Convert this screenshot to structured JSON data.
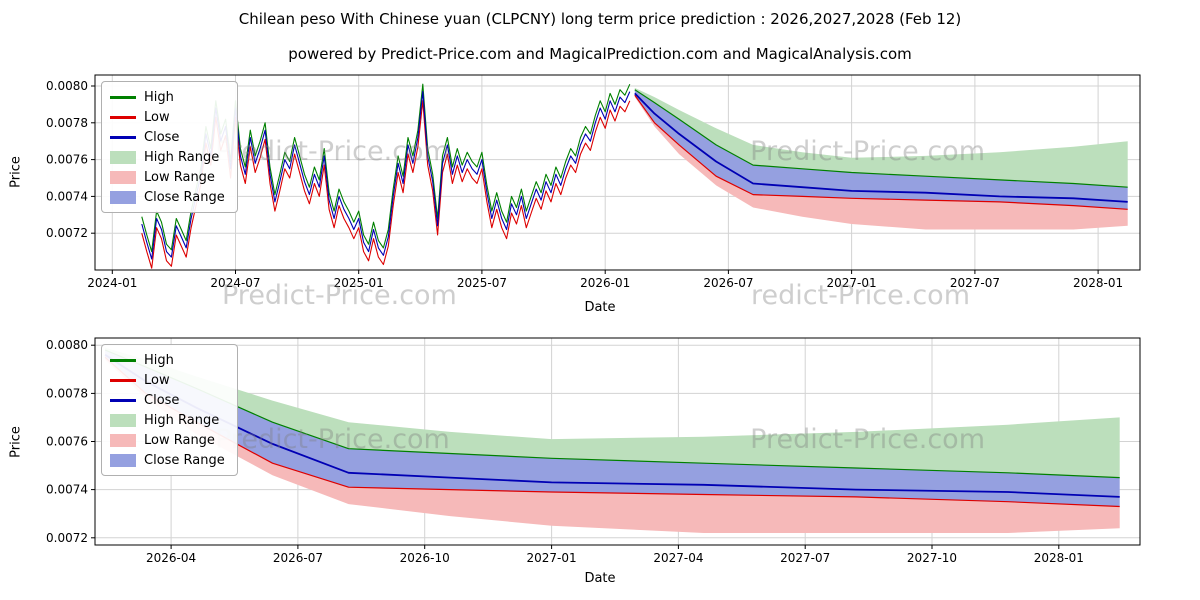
{
  "chart_data": [
    {
      "name": "price-history-and-forecast",
      "type": "line",
      "title": "Chilean peso With Chinese yuan (CLPCNY) long term price prediction : 2026,2027,2028 (Feb 12)",
      "subtitle": "powered by Predict-Price.com and MagicalPrediction.com and MagicalAnalysis.com",
      "xlabel": "Date",
      "ylabel": "Price",
      "xlim": [
        2023.93,
        2028.17
      ],
      "ylim": [
        0.007,
        0.00806
      ],
      "grid": true,
      "legend_position": "upper left",
      "x_ticks": [
        {
          "t": 2024.0,
          "label": "2024-01"
        },
        {
          "t": 2024.5,
          "label": "2024-07"
        },
        {
          "t": 2025.0,
          "label": "2025-01"
        },
        {
          "t": 2025.5,
          "label": "2025-07"
        },
        {
          "t": 2026.0,
          "label": "2026-01"
        },
        {
          "t": 2026.5,
          "label": "2026-07"
        },
        {
          "t": 2027.0,
          "label": "2027-01"
        },
        {
          "t": 2027.5,
          "label": "2027-07"
        },
        {
          "t": 2028.0,
          "label": "2028-01"
        }
      ],
      "y_ticks": [
        {
          "v": 0.0072,
          "label": "0.0072"
        },
        {
          "v": 0.0074,
          "label": "0.0074"
        },
        {
          "v": 0.0076,
          "label": "0.0076"
        },
        {
          "v": 0.0078,
          "label": "0.0078"
        },
        {
          "v": 0.008,
          "label": "0.0080"
        }
      ],
      "history": {
        "t_start": 2024.12,
        "t_step": 0.02,
        "close": [
          0.00725,
          0.00715,
          0.00706,
          0.00728,
          0.00722,
          0.0071,
          0.00707,
          0.00724,
          0.00718,
          0.00712,
          0.00728,
          0.0074,
          0.00752,
          0.00774,
          0.00762,
          0.00788,
          0.0077,
          0.00778,
          0.00755,
          0.00788,
          0.00762,
          0.00752,
          0.00772,
          0.00758,
          0.00766,
          0.00776,
          0.00752,
          0.00737,
          0.00748,
          0.0076,
          0.00755,
          0.00768,
          0.00758,
          0.00748,
          0.00741,
          0.00752,
          0.00745,
          0.00762,
          0.00738,
          0.00728,
          0.0074,
          0.00733,
          0.00728,
          0.00722,
          0.00728,
          0.00715,
          0.0071,
          0.00722,
          0.00712,
          0.00708,
          0.00718,
          0.0074,
          0.00758,
          0.00747,
          0.00768,
          0.00758,
          0.00772,
          0.00797,
          0.00762,
          0.00748,
          0.00724,
          0.00758,
          0.00768,
          0.00752,
          0.00762,
          0.00753,
          0.0076,
          0.00755,
          0.00752,
          0.0076,
          0.00742,
          0.00728,
          0.00738,
          0.00728,
          0.00722,
          0.00736,
          0.0073,
          0.0074,
          0.00728,
          0.00736,
          0.00744,
          0.00738,
          0.00748,
          0.00742,
          0.00752,
          0.00746,
          0.00755,
          0.00762,
          0.00758,
          0.00768,
          0.00774,
          0.0077,
          0.0078,
          0.00788,
          0.00782,
          0.00792,
          0.00786,
          0.00794,
          0.00791,
          0.00797
        ],
        "high": [
          0.00729,
          0.00719,
          0.0071,
          0.00732,
          0.00726,
          0.00714,
          0.00711,
          0.00728,
          0.00722,
          0.00716,
          0.00732,
          0.00744,
          0.00756,
          0.00778,
          0.00766,
          0.00792,
          0.00774,
          0.00782,
          0.00759,
          0.00792,
          0.00766,
          0.00756,
          0.00776,
          0.00762,
          0.0077,
          0.0078,
          0.00756,
          0.00741,
          0.00752,
          0.00764,
          0.00759,
          0.00772,
          0.00762,
          0.00752,
          0.00745,
          0.00756,
          0.00749,
          0.00766,
          0.00742,
          0.00732,
          0.00744,
          0.00737,
          0.00732,
          0.00726,
          0.00732,
          0.00719,
          0.00714,
          0.00726,
          0.00716,
          0.00712,
          0.00722,
          0.00744,
          0.00762,
          0.00751,
          0.00772,
          0.00762,
          0.00776,
          0.00801,
          0.00766,
          0.00752,
          0.00728,
          0.00762,
          0.00772,
          0.00756,
          0.00766,
          0.00757,
          0.00764,
          0.00759,
          0.00756,
          0.00764,
          0.00746,
          0.00732,
          0.00742,
          0.00732,
          0.00726,
          0.0074,
          0.00734,
          0.00744,
          0.00732,
          0.0074,
          0.00748,
          0.00742,
          0.00752,
          0.00746,
          0.00756,
          0.0075,
          0.00759,
          0.00766,
          0.00762,
          0.00772,
          0.00778,
          0.00774,
          0.00784,
          0.00792,
          0.00786,
          0.00796,
          0.0079,
          0.00798,
          0.00795,
          0.00801
        ],
        "low": [
          0.0072,
          0.0071,
          0.00701,
          0.00723,
          0.00717,
          0.00705,
          0.00702,
          0.00719,
          0.00713,
          0.00707,
          0.00723,
          0.00735,
          0.00747,
          0.00769,
          0.00757,
          0.00783,
          0.00765,
          0.00773,
          0.0075,
          0.00783,
          0.00757,
          0.00747,
          0.00767,
          0.00753,
          0.00761,
          0.00771,
          0.00747,
          0.00732,
          0.00743,
          0.00755,
          0.0075,
          0.00763,
          0.00753,
          0.00743,
          0.00736,
          0.00747,
          0.0074,
          0.00757,
          0.00733,
          0.00723,
          0.00735,
          0.00728,
          0.00723,
          0.00717,
          0.00723,
          0.0071,
          0.00705,
          0.00717,
          0.00707,
          0.00703,
          0.00713,
          0.00735,
          0.00753,
          0.00742,
          0.00763,
          0.00753,
          0.00767,
          0.00792,
          0.00757,
          0.00743,
          0.00719,
          0.00753,
          0.00763,
          0.00747,
          0.00757,
          0.00748,
          0.00755,
          0.0075,
          0.00747,
          0.00755,
          0.00737,
          0.00723,
          0.00733,
          0.00723,
          0.00717,
          0.00731,
          0.00725,
          0.00735,
          0.00723,
          0.00731,
          0.00739,
          0.00733,
          0.00743,
          0.00737,
          0.00747,
          0.00741,
          0.0075,
          0.00757,
          0.00753,
          0.00763,
          0.00769,
          0.00765,
          0.00775,
          0.00783,
          0.00777,
          0.00787,
          0.00781,
          0.00789,
          0.00786,
          0.00792
        ]
      },
      "forecast": {
        "t": [
          2026.12,
          2026.2,
          2026.3,
          2026.45,
          2026.6,
          2026.8,
          2027.0,
          2027.3,
          2027.6,
          2027.9,
          2028.12
        ],
        "close": [
          0.00796,
          0.00785,
          0.00774,
          0.00759,
          0.00747,
          0.00745,
          0.00743,
          0.00742,
          0.0074,
          0.00739,
          0.00737
        ],
        "close_upper": [
          0.00798,
          0.00791,
          0.00782,
          0.00768,
          0.00757,
          0.00755,
          0.00753,
          0.00751,
          0.00749,
          0.00747,
          0.00745
        ],
        "close_lower": [
          0.00795,
          0.0078,
          0.00768,
          0.00751,
          0.00741,
          0.0074,
          0.00739,
          0.00738,
          0.00737,
          0.00735,
          0.00733
        ],
        "high_upper": [
          0.00799,
          0.00794,
          0.00787,
          0.00777,
          0.00768,
          0.00764,
          0.00761,
          0.00762,
          0.00764,
          0.00767,
          0.0077
        ],
        "low_lower": [
          0.00794,
          0.00778,
          0.00763,
          0.00746,
          0.00734,
          0.00729,
          0.00725,
          0.00722,
          0.00722,
          0.00722,
          0.00724
        ]
      }
    },
    {
      "name": "forecast-detail",
      "type": "line",
      "title": "",
      "xlabel": "Date",
      "ylabel": "Price",
      "xlim": [
        2026.1,
        2028.16
      ],
      "ylim": [
        0.00717,
        0.00803
      ],
      "grid": true,
      "legend_position": "upper left",
      "x_ticks": [
        {
          "t": 2026.25,
          "label": "2026-04"
        },
        {
          "t": 2026.5,
          "label": "2026-07"
        },
        {
          "t": 2026.75,
          "label": "2026-10"
        },
        {
          "t": 2027.0,
          "label": "2027-01"
        },
        {
          "t": 2027.25,
          "label": "2027-04"
        },
        {
          "t": 2027.5,
          "label": "2027-07"
        },
        {
          "t": 2027.75,
          "label": "2027-10"
        },
        {
          "t": 2028.0,
          "label": "2028-01"
        }
      ],
      "y_ticks": [
        {
          "v": 0.0072,
          "label": "0.0072"
        },
        {
          "v": 0.0074,
          "label": "0.0074"
        },
        {
          "v": 0.0076,
          "label": "0.0076"
        },
        {
          "v": 0.0078,
          "label": "0.0078"
        },
        {
          "v": 0.008,
          "label": "0.0080"
        }
      ],
      "forecast": {
        "t": [
          2026.12,
          2026.2,
          2026.3,
          2026.45,
          2026.6,
          2026.8,
          2027.0,
          2027.3,
          2027.6,
          2027.9,
          2028.12
        ],
        "close": [
          0.00796,
          0.00785,
          0.00774,
          0.00759,
          0.00747,
          0.00745,
          0.00743,
          0.00742,
          0.0074,
          0.00739,
          0.00737
        ],
        "close_upper": [
          0.00798,
          0.00791,
          0.00782,
          0.00768,
          0.00757,
          0.00755,
          0.00753,
          0.00751,
          0.00749,
          0.00747,
          0.00745
        ],
        "close_lower": [
          0.00795,
          0.0078,
          0.00768,
          0.00751,
          0.00741,
          0.0074,
          0.00739,
          0.00738,
          0.00737,
          0.00735,
          0.00733
        ],
        "high_upper": [
          0.00799,
          0.00794,
          0.00787,
          0.00777,
          0.00768,
          0.00764,
          0.00761,
          0.00762,
          0.00764,
          0.00767,
          0.0077
        ],
        "low_lower": [
          0.00794,
          0.00778,
          0.00763,
          0.00746,
          0.00734,
          0.00729,
          0.00725,
          0.00722,
          0.00722,
          0.00722,
          0.00724
        ]
      }
    }
  ],
  "legend": [
    {
      "label": "High",
      "type": "line",
      "color_key": "high_line"
    },
    {
      "label": "Low",
      "type": "line",
      "color_key": "low_line"
    },
    {
      "label": "Close",
      "type": "line",
      "color_key": "close_line"
    },
    {
      "label": "High Range",
      "type": "patch",
      "color_key": "high_range_fill"
    },
    {
      "label": "Low Range",
      "type": "patch",
      "color_key": "low_range_fill"
    },
    {
      "label": "Close Range",
      "type": "patch",
      "color_key": "close_range_fill"
    }
  ],
  "colors": {
    "high_line": "#008000",
    "low_line": "#dd0000",
    "close_line": "#0000b4",
    "high_range_fill": "#bcdfbc",
    "low_range_fill": "#f6b9b9",
    "close_range_fill": "#95a0e0",
    "grid": "#d3d3d3",
    "axis": "#000000",
    "watermark": "#c9c9c9"
  },
  "watermarks": [
    {
      "texts": [
        "Predict-Price.com",
        "Predict-Price.com"
      ]
    },
    {
      "texts": [
        "Predict-Price.com",
        "redict-Price.com"
      ]
    },
    {
      "texts": [
        "Predict-Price.com",
        "Predict-Price.com"
      ]
    }
  ]
}
